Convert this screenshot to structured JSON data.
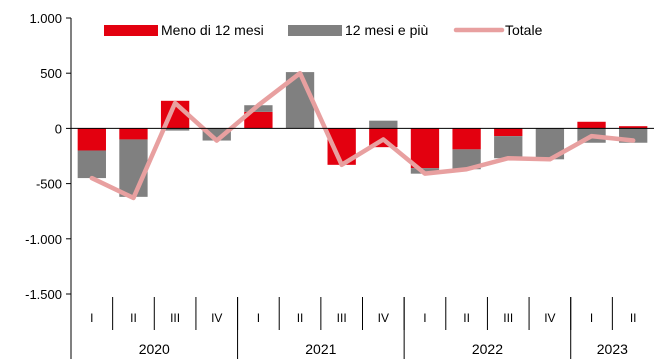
{
  "chart_data": {
    "type": "bar",
    "stacked": true,
    "title": "",
    "xlabel": "",
    "ylabel": "",
    "ylim": [
      -1500,
      1000
    ],
    "y_ticks": [
      1000,
      500,
      0,
      -500,
      -1000,
      -1500
    ],
    "y_tick_labels": [
      "1.000",
      "500",
      "0",
      "-500",
      "-1.000",
      "-1.500"
    ],
    "grid": false,
    "legend_position": "top",
    "categories": [
      "I",
      "II",
      "III",
      "IV",
      "I",
      "II",
      "III",
      "IV",
      "I",
      "II",
      "III",
      "IV",
      "I",
      "II"
    ],
    "year_groups": [
      {
        "label": "2020",
        "quarters": 4
      },
      {
        "label": "2021",
        "quarters": 4
      },
      {
        "label": "2022",
        "quarters": 4
      },
      {
        "label": "2023",
        "quarters": 2
      }
    ],
    "series": [
      {
        "name": "Meno di 12 mesi",
        "type": "bar",
        "color": "#e3000f",
        "values": [
          -200,
          -100,
          250,
          0,
          150,
          0,
          -330,
          -170,
          -360,
          -190,
          -70,
          0,
          60,
          20
        ]
      },
      {
        "name": "12 mesi e più",
        "type": "bar",
        "color": "#808080",
        "values": [
          -250,
          -520,
          -20,
          -110,
          60,
          510,
          0,
          70,
          -50,
          -180,
          -200,
          -280,
          -130,
          -130
        ]
      },
      {
        "name": "Totale",
        "type": "line",
        "color": "#e8a0a0",
        "values": [
          -450,
          -630,
          230,
          -110,
          210,
          500,
          -330,
          -100,
          -410,
          -370,
          -270,
          -280,
          -70,
          -110
        ]
      }
    ]
  }
}
